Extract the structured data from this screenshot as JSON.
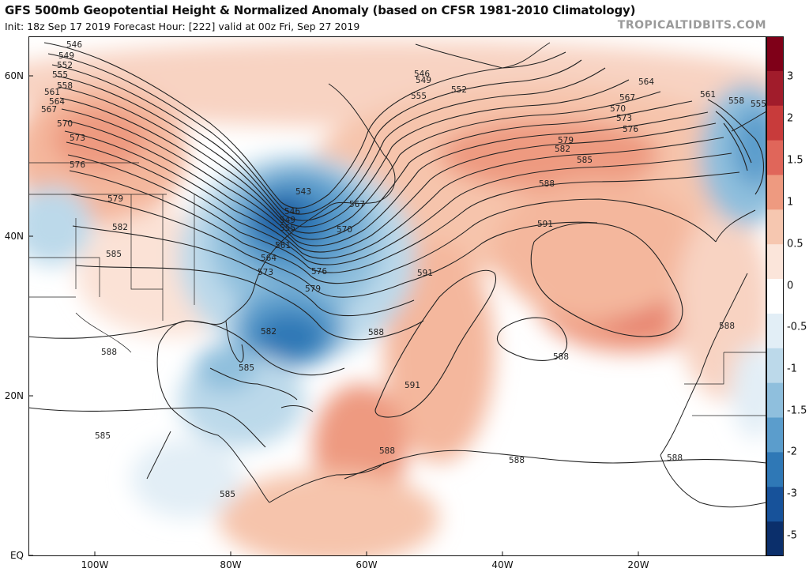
{
  "header": {
    "title": "GFS 500mb Geopotential Height & Normalized Anomaly (based on CFSR 1981-2010 Climatology)",
    "subtitle": "Init: 18z Sep 17 2019   Forecast Hour: [222]   valid at 00z Fri, Sep 27 2019",
    "brand": "TROPICALTIDBITS.COM"
  },
  "axes": {
    "lat_labels": [
      "60N",
      "40N",
      "20N",
      "EQ"
    ],
    "lon_labels": [
      "100W",
      "80W",
      "60W",
      "40W",
      "20W"
    ]
  },
  "colorbar": {
    "labels": [
      "3",
      "2",
      "1.5",
      "1",
      "0.5",
      "0",
      "-0.5",
      "-1",
      "-1.5",
      "-2",
      "-3",
      "-5"
    ],
    "colors": [
      "#7f0018",
      "#a11c2b",
      "#c83b3b",
      "#e0665a",
      "#ee9a80",
      "#f6c7b0",
      "#fbe5da",
      "#ffffff",
      "#e2eef6",
      "#bcd9ea",
      "#8fbfdd",
      "#5b9dcc",
      "#2f78b6",
      "#17529a",
      "#0b2f6b"
    ]
  },
  "contours": {
    "labels": [
      {
        "t": "546"
      },
      {
        "t": "549"
      },
      {
        "t": "552"
      },
      {
        "t": "555"
      },
      {
        "t": "558"
      },
      {
        "t": "561"
      },
      {
        "t": "564"
      },
      {
        "t": "567"
      },
      {
        "t": "570"
      },
      {
        "t": "573"
      },
      {
        "t": "576"
      },
      {
        "t": "579"
      },
      {
        "t": "582"
      },
      {
        "t": "585"
      },
      {
        "t": "546"
      },
      {
        "t": "549"
      },
      {
        "t": "552"
      },
      {
        "t": "555"
      },
      {
        "t": "564"
      },
      {
        "t": "567"
      },
      {
        "t": "570"
      },
      {
        "t": "573"
      },
      {
        "t": "576"
      },
      {
        "t": "579"
      },
      {
        "t": "582"
      },
      {
        "t": "585"
      },
      {
        "t": "588"
      },
      {
        "t": "561"
      },
      {
        "t": "558"
      },
      {
        "t": "555"
      },
      {
        "t": "543"
      },
      {
        "t": "546"
      },
      {
        "t": "549"
      },
      {
        "t": "555"
      },
      {
        "t": "561"
      },
      {
        "t": "564"
      },
      {
        "t": "567"
      },
      {
        "t": "570"
      },
      {
        "t": "573"
      },
      {
        "t": "576"
      },
      {
        "t": "579"
      },
      {
        "t": "582"
      },
      {
        "t": "585"
      },
      {
        "t": "591"
      },
      {
        "t": "591"
      },
      {
        "t": "591"
      },
      {
        "t": "588"
      },
      {
        "t": "588"
      },
      {
        "t": "588"
      },
      {
        "t": "588"
      },
      {
        "t": "588"
      },
      {
        "t": "588"
      },
      {
        "t": "585"
      },
      {
        "t": "585"
      },
      {
        "t": "588"
      }
    ]
  }
}
